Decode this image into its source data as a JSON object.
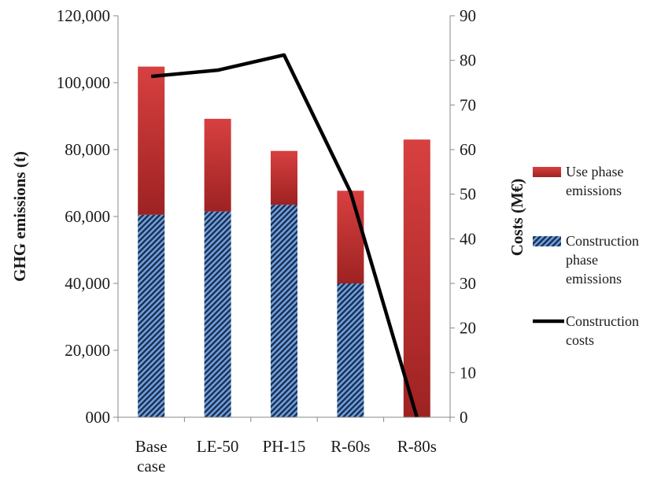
{
  "chart_data": {
    "type": "bar",
    "categories": [
      [
        "Base",
        "case"
      ],
      [
        "LE-50"
      ],
      [
        "PH-15"
      ],
      [
        "R-60s"
      ],
      [
        "R-80s"
      ]
    ],
    "series": [
      {
        "name": "Construction phase emissions",
        "kind": "stacked-bar",
        "axis": "left",
        "values": [
          60500,
          61500,
          63500,
          40000,
          0
        ],
        "color": "#5b8fd0",
        "pattern": "diagonal-hatch"
      },
      {
        "name": "Use phase emissions",
        "kind": "stacked-bar",
        "axis": "left",
        "values": [
          44300,
          27700,
          16100,
          27700,
          83000
        ],
        "color": "#cc3333"
      },
      {
        "name": "Construction costs",
        "kind": "line",
        "axis": "right",
        "values": [
          76.4,
          77.8,
          81.2,
          50.5,
          0
        ],
        "color": "#000000"
      }
    ],
    "ylabel": "GHG emissions (t)",
    "y2label": "Costs (M€)",
    "ylim": [
      0,
      120000
    ],
    "y2lim": [
      0,
      90
    ],
    "yticks": [
      "000",
      "20,000",
      "40,000",
      "60,000",
      "80,000",
      "100,000",
      "120,000"
    ],
    "y2ticks": [
      "0",
      "10",
      "20",
      "30",
      "40",
      "50",
      "60",
      "70",
      "80",
      "90"
    ],
    "legend": {
      "position": "right",
      "items": [
        {
          "lines": [
            "Use phase",
            "emissions"
          ]
        },
        {
          "lines": [
            "Construction",
            "phase",
            "emissions"
          ]
        },
        {
          "lines": [
            "Construction",
            "costs"
          ]
        }
      ]
    },
    "grid": false
  }
}
